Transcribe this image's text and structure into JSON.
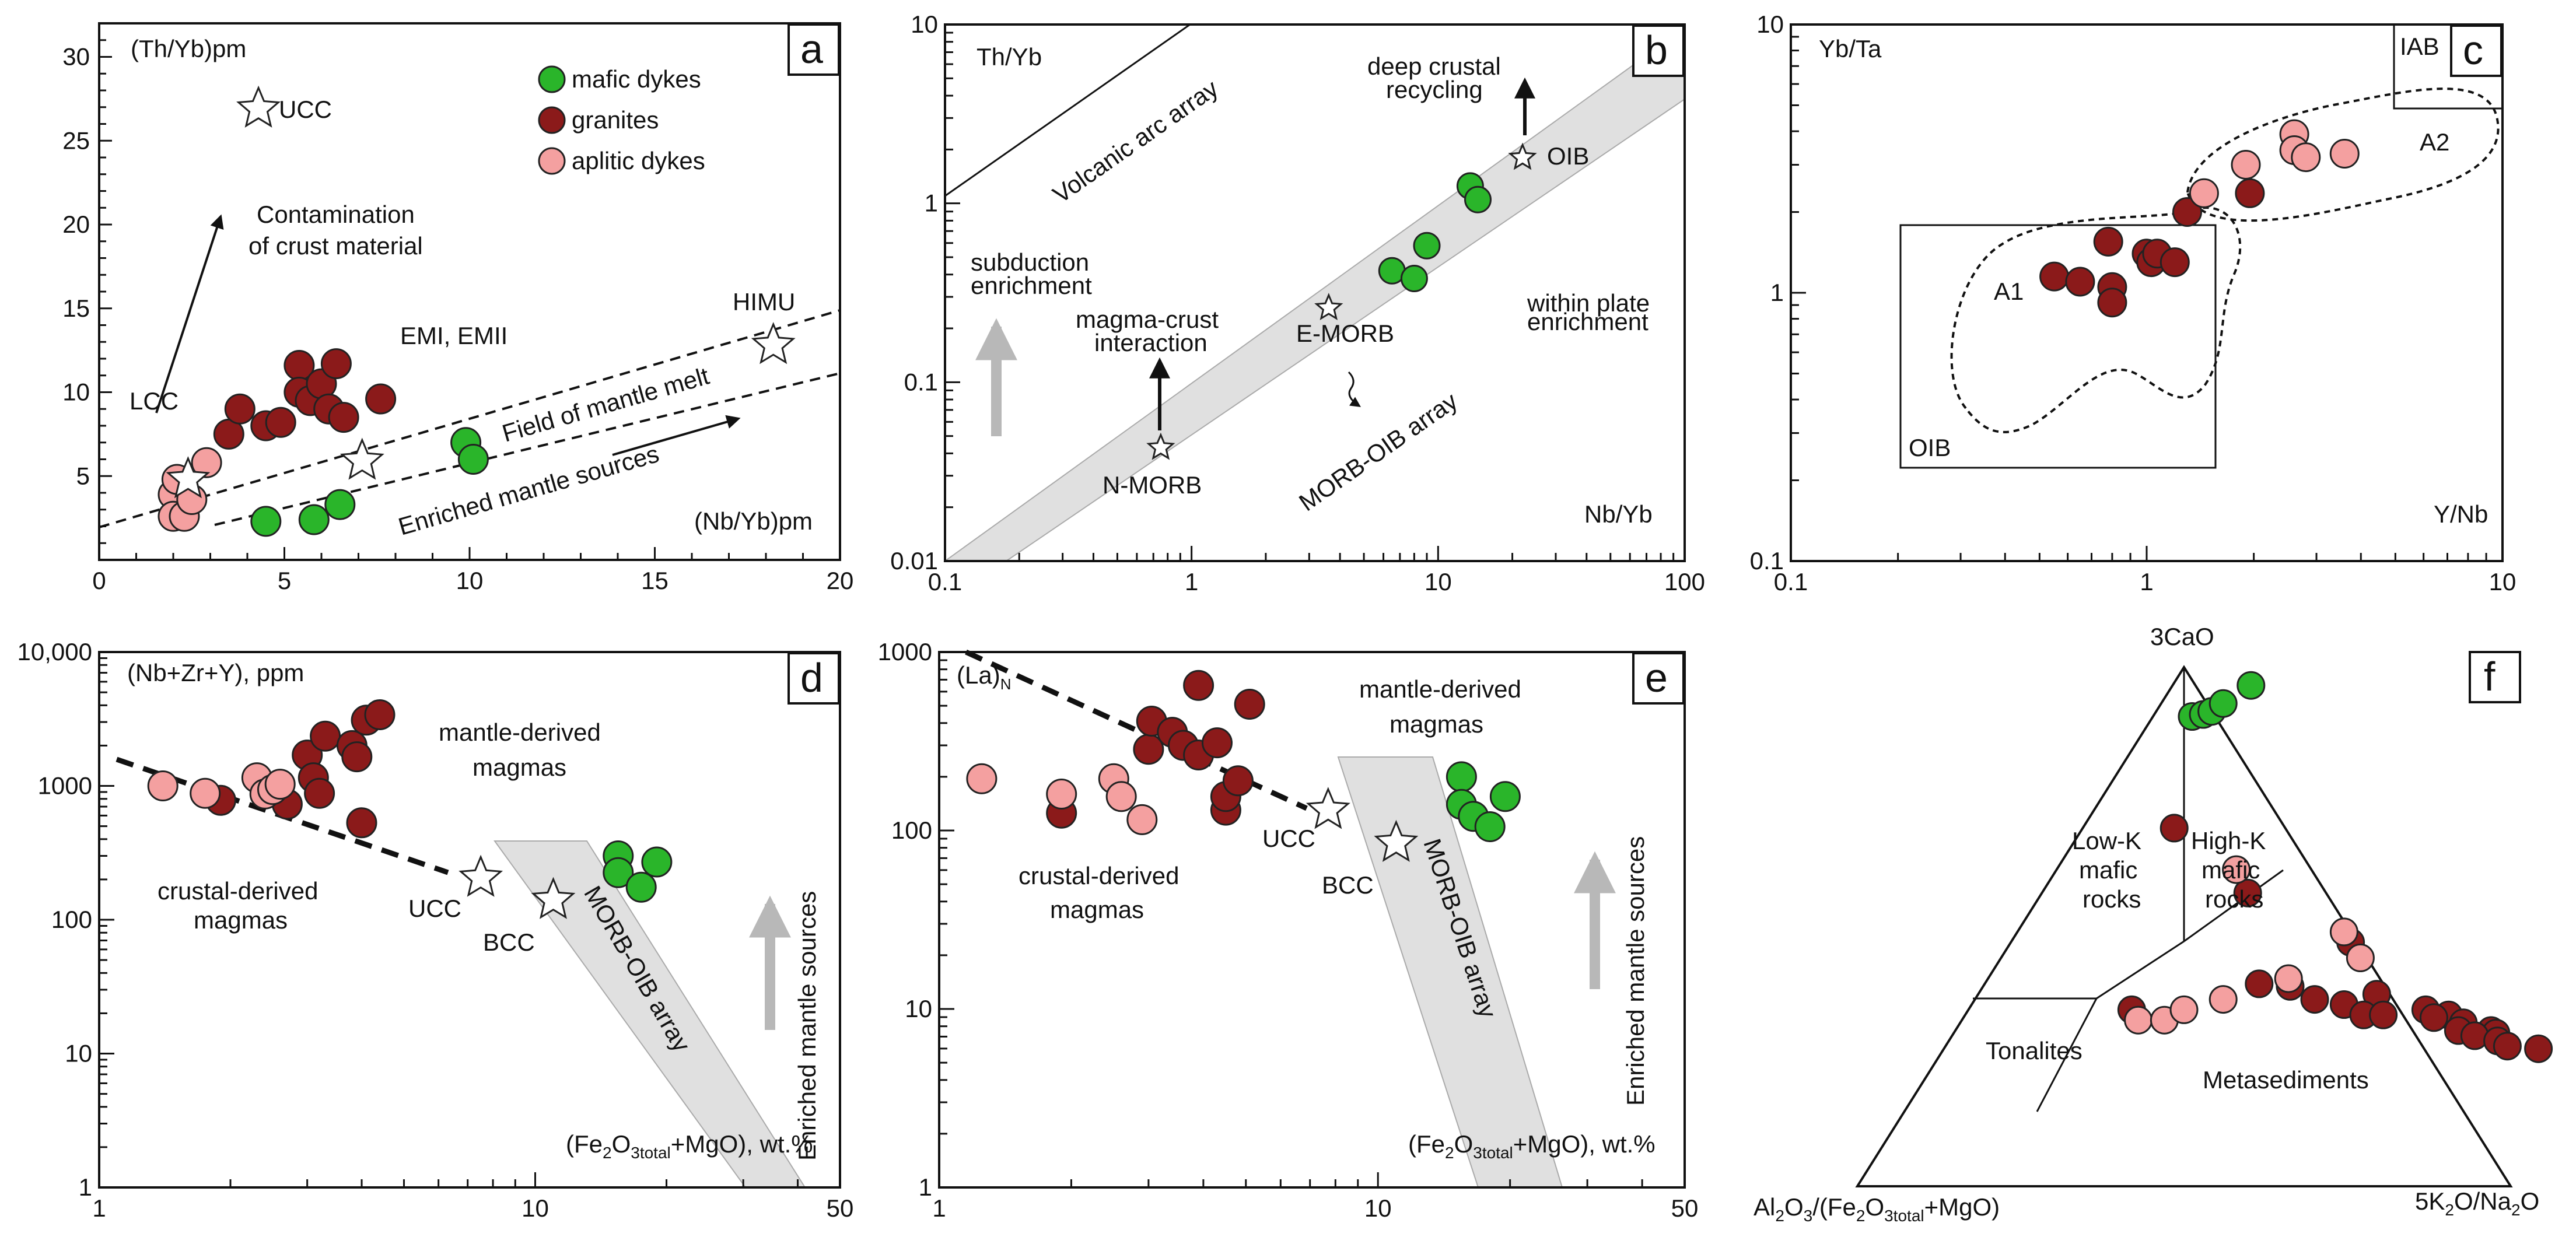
{
  "colors": {
    "mafic_dykes": "#2ab52a",
    "granites": "#8b1a1a",
    "aplitic_dykes": "#f4a0a0",
    "array_fill": "#e0e0e0",
    "arrow_gray": "#b8b8b8"
  },
  "legend": {
    "mafic": "mafic dykes",
    "granites": "granites",
    "aplitic": "aplitic dykes"
  },
  "chart_data": [
    {
      "panel": "a",
      "type": "scatter",
      "xlabel": "(Nb/Yb)pm",
      "ylabel": "(Th/Yb)pm",
      "xlim": [
        0,
        20
      ],
      "ylim": [
        0,
        32
      ],
      "xticks": [
        "0",
        "5",
        "10",
        "15",
        "20"
      ],
      "yticks": [
        "5",
        "10",
        "15",
        "20",
        "25",
        "30"
      ],
      "series": [
        {
          "name": "mafic dykes",
          "points": [
            [
              4.5,
              2.3
            ],
            [
              5.8,
              2.4
            ],
            [
              6.5,
              3.3
            ],
            [
              9.9,
              7.0
            ],
            [
              10.1,
              6.0
            ]
          ]
        },
        {
          "name": "granites",
          "points": [
            [
              3.5,
              7.5
            ],
            [
              3.8,
              9.0
            ],
            [
              4.5,
              8.0
            ],
            [
              4.9,
              8.2
            ],
            [
              5.4,
              11.6
            ],
            [
              5.4,
              10.0
            ],
            [
              5.7,
              9.5
            ],
            [
              6.0,
              10.5
            ],
            [
              6.2,
              9.0
            ],
            [
              6.4,
              11.7
            ],
            [
              6.6,
              8.5
            ],
            [
              7.6,
              9.6
            ]
          ]
        },
        {
          "name": "aplitic dykes",
          "points": [
            [
              2.0,
              3.9
            ],
            [
              2.0,
              2.6
            ],
            [
              2.1,
              4.8
            ],
            [
              2.3,
              2.6
            ],
            [
              2.5,
              3.6
            ],
            [
              2.9,
              5.8
            ]
          ]
        }
      ],
      "references": [
        {
          "label": "UCC",
          "x": 4.3,
          "y": 26.9
        },
        {
          "label": "LCC",
          "x": 2.4,
          "y": 4.8
        },
        {
          "label": "EMI, EMII",
          "x": 7.1,
          "y": 5.9
        },
        {
          "label": "HIMU",
          "x": 18.2,
          "y": 12.8
        }
      ],
      "annotations": [
        "Contamination of crust material",
        "Field of mantle melt",
        "Enriched mantle sources"
      ],
      "legend_position": "top-right"
    },
    {
      "panel": "b",
      "type": "scatter",
      "xlabel": "Nb/Yb",
      "ylabel": "Th/Yb",
      "xscale": "log",
      "yscale": "log",
      "xlim": [
        0.1,
        100
      ],
      "ylim": [
        0.01,
        10
      ],
      "xticks": [
        "0.1",
        "1",
        "10",
        "100"
      ],
      "yticks": [
        "0.01",
        "0.1",
        "1",
        "10"
      ],
      "series": [
        {
          "name": "mafic dykes",
          "points": [
            [
              6.5,
              0.42
            ],
            [
              8.0,
              0.38
            ],
            [
              9.0,
              0.58
            ],
            [
              13.5,
              1.25
            ],
            [
              14.5,
              1.05
            ]
          ]
        }
      ],
      "references": [
        {
          "label": "N-MORB",
          "x": 0.75,
          "y": 0.043
        },
        {
          "label": "E-MORB",
          "x": 3.6,
          "y": 0.26
        },
        {
          "label": "OIB",
          "x": 22,
          "y": 1.8
        }
      ],
      "annotations": [
        "Volcanic arc array",
        "MORB-OIB array",
        "subduction enrichment",
        "magma-crust interaction",
        "deep crustal recycling",
        "within plate enrichment"
      ]
    },
    {
      "panel": "c",
      "type": "scatter",
      "xlabel": "Y/Nb",
      "ylabel": "Yb/Ta",
      "xscale": "log",
      "yscale": "log",
      "xlim": [
        0.1,
        10
      ],
      "ylim": [
        0.1,
        10
      ],
      "xticks": [
        "0.1",
        "1",
        "10"
      ],
      "yticks": [
        "0.1",
        "1",
        "10"
      ],
      "series": [
        {
          "name": "granites",
          "points": [
            [
              0.55,
              1.15
            ],
            [
              0.65,
              1.1
            ],
            [
              0.78,
              1.55
            ],
            [
              0.8,
              1.05
            ],
            [
              0.8,
              0.92
            ],
            [
              1.0,
              1.4
            ],
            [
              1.03,
              1.3
            ],
            [
              1.07,
              1.4
            ],
            [
              1.2,
              1.3
            ],
            [
              1.3,
              2.0
            ],
            [
              1.95,
              2.35
            ]
          ]
        },
        {
          "name": "aplitic dykes",
          "points": [
            [
              1.45,
              2.35
            ],
            [
              1.9,
              3.0
            ],
            [
              2.6,
              3.9
            ],
            [
              2.6,
              3.4
            ],
            [
              2.8,
              3.2
            ],
            [
              3.6,
              3.3
            ]
          ]
        }
      ],
      "fields": [
        "IAB",
        "OIB",
        "A1",
        "A2"
      ]
    },
    {
      "panel": "d",
      "type": "scatter",
      "xlabel": "(Fe2O3total+MgO), wt.%",
      "ylabel": "(Nb+Zr+Y), ppm",
      "xscale": "log",
      "yscale": "log",
      "xlim": [
        1,
        50
      ],
      "ylim": [
        1,
        10000
      ],
      "xticks": [
        "1",
        "10",
        "50"
      ],
      "yticks": [
        "1",
        "10",
        "100",
        "1000",
        "10,000"
      ],
      "series": [
        {
          "name": "mafic dykes",
          "points": [
            [
              15.5,
              300
            ],
            [
              15.5,
              225
            ],
            [
              17.5,
              175
            ],
            [
              19,
              270
            ]
          ]
        },
        {
          "name": "granites",
          "points": [
            [
              1.9,
              780
            ],
            [
              2.7,
              730
            ],
            [
              3.0,
              1700
            ],
            [
              3.1,
              1150
            ],
            [
              3.2,
              880
            ],
            [
              3.3,
              2350
            ],
            [
              3.8,
              2000
            ],
            [
              3.9,
              1650
            ],
            [
              4.0,
              530
            ],
            [
              4.1,
              3100
            ],
            [
              4.4,
              3400
            ]
          ]
        },
        {
          "name": "aplitic dykes",
          "points": [
            [
              1.4,
              1000
            ],
            [
              1.75,
              880
            ],
            [
              2.3,
              1150
            ],
            [
              2.4,
              870
            ],
            [
              2.5,
              940
            ],
            [
              2.6,
              1030
            ]
          ]
        }
      ],
      "references": [
        {
          "label": "UCC",
          "x": 7.5,
          "y": 205
        },
        {
          "label": "BCC",
          "x": 11,
          "y": 140
        }
      ],
      "annotations": [
        "mantle-derived magmas",
        "crustal-derived magmas",
        "MORB-OIB array",
        "Enriched mantle sources"
      ]
    },
    {
      "panel": "e",
      "type": "scatter",
      "xlabel": "(Fe2O3total+MgO), wt.%",
      "ylabel": "(La)N",
      "xscale": "log",
      "yscale": "log",
      "xlim": [
        1,
        50
      ],
      "ylim": [
        1,
        1000
      ],
      "xticks": [
        "1",
        "10",
        "50"
      ],
      "yticks": [
        "1",
        "10",
        "100",
        "1000"
      ],
      "series": [
        {
          "name": "mafic dykes",
          "points": [
            [
              15.5,
              200
            ],
            [
              15.5,
              140
            ],
            [
              16.5,
              120
            ],
            [
              18,
              105
            ],
            [
              19.5,
              155
            ]
          ]
        },
        {
          "name": "granites",
          "points": [
            [
              1.9,
              125
            ],
            [
              3.0,
              285
            ],
            [
              3.05,
              410
            ],
            [
              3.4,
              355
            ],
            [
              3.6,
              300
            ],
            [
              3.9,
              265
            ],
            [
              3.9,
              650
            ],
            [
              4.3,
              310
            ],
            [
              4.5,
              130
            ],
            [
              4.5,
              155
            ],
            [
              4.8,
              190
            ],
            [
              5.1,
              510
            ]
          ]
        },
        {
          "name": "aplitic dykes",
          "points": [
            [
              1.25,
              195
            ],
            [
              1.9,
              160
            ],
            [
              2.5,
              195
            ],
            [
              2.6,
              155
            ],
            [
              2.9,
              115
            ]
          ]
        }
      ],
      "references": [
        {
          "label": "UCC",
          "x": 7.7,
          "y": 130
        },
        {
          "label": "BCC",
          "x": 11,
          "y": 85
        }
      ],
      "annotations": [
        "mantle-derived magmas",
        "crustal-derived magmas",
        "MORB-OIB array",
        "Enriched mantle sources"
      ]
    },
    {
      "panel": "f",
      "type": "ternary",
      "apices": [
        "3CaO",
        "Al2O3/(Fe2O3total+MgO)",
        "5K2O/Na2O"
      ],
      "fields": [
        "Low-K mafic rocks",
        "High-K mafic rocks",
        "Tonalites",
        "Metasediments"
      ]
    }
  ],
  "panels": {
    "a": {
      "letter": "a",
      "ylabel": "(Th/Yb)pm",
      "xlabel": "(Nb/Yb)pm",
      "ucc": "UCC",
      "lcc": "LCC",
      "emi": "EMI, EMII",
      "himu": "HIMU",
      "contam1": "Contamination",
      "contam2": "of crust material",
      "field": "Field of mantle melt",
      "enriched": "Enriched mantle sources"
    },
    "b": {
      "letter": "b",
      "ylabel": "Th/Yb",
      "xlabel": "Nb/Yb",
      "volcanic": "Volcanic arc array",
      "morb_oib": "MORB-OIB array",
      "sub1": "subduction",
      "sub2": "enrichment",
      "mci1": "magma-crust",
      "mci2": "interaction",
      "dcr1": "deep crustal",
      "dcr2": "recycling",
      "wpe1": "within plate",
      "wpe2": "enrichment",
      "nmorb": "N-MORB",
      "emorb": "E-MORB",
      "oib": "OIB"
    },
    "c": {
      "letter": "c",
      "ylabel": "Yb/Ta",
      "xlabel": "Y/Nb",
      "iab": "IAB",
      "oib": "OIB",
      "a1": "A1",
      "a2": "A2"
    },
    "d": {
      "letter": "d",
      "ylabel": "(Nb+Zr+Y), ppm",
      "xlabel_pre": "(Fe",
      "xlabel_sub1": "2",
      "xlabel_mid": "O",
      "xlabel_sub2": "3total",
      "xlabel_post": "+MgO), wt.%",
      "mantle1": "mantle-derived",
      "mantle2": "magmas",
      "crustal1": "crustal-derived",
      "crustal2": "magmas",
      "ucc": "UCC",
      "bcc": "BCC",
      "morb_oib": "MORB-OIB array",
      "enriched": "Enriched mantle sources"
    },
    "e": {
      "letter": "e",
      "ylabel_pre": "(La)",
      "ylabel_sub": "N",
      "xlabel_pre": "(Fe",
      "xlabel_sub1": "2",
      "xlabel_mid": "O",
      "xlabel_sub2": "3total",
      "xlabel_post": "+MgO), wt.%",
      "mantle1": "mantle-derived",
      "mantle2": "magmas",
      "crustal1": "crustal-derived",
      "crustal2": "magmas",
      "ucc": "UCC",
      "bcc": "BCC",
      "morb_oib": "MORB-OIB array",
      "enriched": "Enriched mantle sources"
    },
    "f": {
      "letter": "f",
      "top": "3CaO",
      "left_pre": "Al",
      "left_s1": "2",
      "left_m1": "O",
      "left_s2": "3",
      "left_m2": "/(Fe",
      "left_s3": "2",
      "left_m3": "O",
      "left_s4": "3total",
      "left_post": "+MgO)",
      "right_pre": "5K",
      "right_s1": "2",
      "right_mid": "O/Na",
      "right_s2": "2",
      "right_post": "O",
      "lowk1": "Low-K",
      "lowk2": "mafic",
      "lowk3": "rocks",
      "highk1": "High-K",
      "highk2": "mafic",
      "highk3": "rocks",
      "tonalites": "Tonalites",
      "metased": "Metasediments",
      "mafic_points": [
        [
          0.905,
          0.06
        ],
        [
          0.909,
          0.075
        ],
        [
          0.915,
          0.085
        ],
        [
          0.93,
          0.095
        ],
        [
          0.965,
          0.12
        ]
      ],
      "granite_points": [
        [
          0.69,
          0.14
        ],
        [
          0.565,
          0.315
        ],
        [
          0.47,
          0.52
        ],
        [
          0.39,
          0.42
        ],
        [
          0.385,
          0.47
        ],
        [
          0.35,
          0.57
        ],
        [
          0.36,
          0.52
        ],
        [
          0.37,
          0.61
        ],
        [
          0.33,
          0.61
        ],
        [
          0.33,
          0.64
        ],
        [
          0.34,
          0.7
        ],
        [
          0.33,
          0.74
        ],
        [
          0.325,
          0.72
        ],
        [
          0.315,
          0.77
        ],
        [
          0.3,
          0.77
        ],
        [
          0.3,
          0.82
        ],
        [
          0.295,
          0.83
        ],
        [
          0.29,
          0.8
        ],
        [
          0.28,
          0.84
        ],
        [
          0.27,
          0.86
        ],
        [
          0.265,
          0.91
        ],
        [
          0.34,
          0.25
        ]
      ],
      "aplitic_points": [
        [
          0.61,
          0.275
        ],
        [
          0.49,
          0.5
        ],
        [
          0.44,
          0.55
        ],
        [
          0.32,
          0.27
        ],
        [
          0.32,
          0.31
        ],
        [
          0.34,
          0.33
        ],
        [
          0.36,
          0.38
        ],
        [
          0.4,
          0.46
        ]
      ]
    }
  }
}
